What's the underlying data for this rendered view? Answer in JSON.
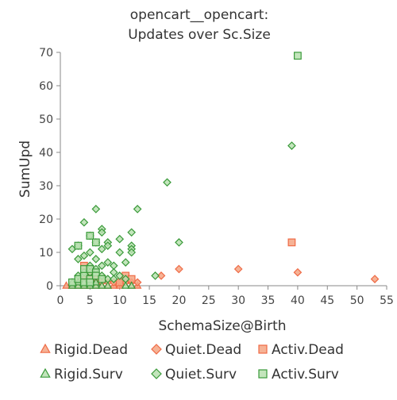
{
  "chart_data": {
    "type": "scatter",
    "title": [
      "opencart__opencart:",
      "Updates over Sc.Size"
    ],
    "xlabel": "SchemaSize@Birth",
    "ylabel": "SumUpd",
    "xlim": [
      0,
      55
    ],
    "ylim": [
      0,
      70
    ],
    "xticks": [
      "0",
      "5",
      "10",
      "15",
      "20",
      "25",
      "30",
      "35",
      "40",
      "45",
      "50",
      "55"
    ],
    "yticks": [
      "0",
      "10",
      "20",
      "30",
      "40",
      "50",
      "60",
      "70"
    ],
    "grid": false,
    "legend_position": "bottom",
    "series": [
      {
        "name": "Rigid.Dead",
        "marker": "triangle",
        "color": "#f4a582",
        "stroke": "#ef6a45",
        "points": [
          [
            1,
            0
          ],
          [
            2,
            0
          ],
          [
            3,
            0
          ],
          [
            4,
            0
          ],
          [
            4,
            1
          ],
          [
            5,
            0
          ],
          [
            5,
            1
          ],
          [
            6,
            0
          ],
          [
            6,
            1
          ],
          [
            7,
            0
          ],
          [
            8,
            0
          ],
          [
            9,
            0
          ],
          [
            10,
            0
          ],
          [
            12,
            0
          ],
          [
            13,
            0
          ]
        ]
      },
      {
        "name": "Quiet.Dead",
        "marker": "diamond",
        "color": "#f4a582",
        "stroke": "#ef6a45",
        "points": [
          [
            3,
            1
          ],
          [
            4,
            1
          ],
          [
            4,
            2
          ],
          [
            5,
            1
          ],
          [
            5,
            3
          ],
          [
            6,
            1
          ],
          [
            6,
            2
          ],
          [
            7,
            1
          ],
          [
            8,
            1
          ],
          [
            9,
            1
          ],
          [
            10,
            1
          ],
          [
            11,
            2
          ],
          [
            11,
            1
          ],
          [
            12,
            1
          ],
          [
            13,
            1
          ],
          [
            17,
            3
          ],
          [
            20,
            5
          ],
          [
            30,
            5
          ],
          [
            40,
            4
          ],
          [
            53,
            2
          ]
        ]
      },
      {
        "name": "Activ.Dead",
        "marker": "square",
        "color": "#f4a582",
        "stroke": "#ef6a45",
        "points": [
          [
            4,
            6
          ],
          [
            4,
            1
          ],
          [
            5,
            2
          ],
          [
            7,
            2
          ],
          [
            10,
            1
          ],
          [
            11,
            3
          ],
          [
            12,
            2
          ],
          [
            39,
            13
          ]
        ]
      },
      {
        "name": "Rigid.Surv",
        "marker": "triangle",
        "color": "#b8e0b0",
        "stroke": "#3a9a3a",
        "points": [
          [
            2,
            0
          ],
          [
            2,
            1
          ],
          [
            3,
            0
          ],
          [
            3,
            1
          ],
          [
            4,
            0
          ],
          [
            4,
            1
          ],
          [
            5,
            0
          ],
          [
            5,
            1
          ],
          [
            6,
            0
          ],
          [
            6,
            1
          ],
          [
            7,
            0
          ],
          [
            8,
            0
          ],
          [
            11,
            0
          ],
          [
            12,
            0
          ]
        ]
      },
      {
        "name": "Quiet.Surv",
        "marker": "diamond",
        "color": "#b8e0b0",
        "stroke": "#3a9a3a",
        "points": [
          [
            2,
            11
          ],
          [
            3,
            8
          ],
          [
            3,
            12
          ],
          [
            4,
            19
          ],
          [
            4,
            9
          ],
          [
            5,
            15
          ],
          [
            5,
            10
          ],
          [
            5,
            6
          ],
          [
            6,
            23
          ],
          [
            6,
            13
          ],
          [
            6,
            8
          ],
          [
            7,
            17
          ],
          [
            7,
            16
          ],
          [
            7,
            11
          ],
          [
            7,
            6
          ],
          [
            8,
            13
          ],
          [
            8,
            12
          ],
          [
            8,
            7
          ],
          [
            9,
            6
          ],
          [
            9,
            4
          ],
          [
            10,
            14
          ],
          [
            10,
            10
          ],
          [
            11,
            7
          ],
          [
            12,
            16
          ],
          [
            12,
            12
          ],
          [
            12,
            11
          ],
          [
            12,
            10
          ],
          [
            13,
            23
          ],
          [
            16,
            3
          ],
          [
            18,
            31
          ],
          [
            20,
            13
          ],
          [
            39,
            42
          ],
          [
            3,
            3
          ],
          [
            4,
            4
          ],
          [
            5,
            4
          ],
          [
            6,
            5
          ],
          [
            7,
            3
          ],
          [
            8,
            2
          ],
          [
            9,
            2
          ],
          [
            10,
            3
          ],
          [
            11,
            2
          ]
        ]
      },
      {
        "name": "Activ.Surv",
        "marker": "square",
        "color": "#b8e0b0",
        "stroke": "#3a9a3a",
        "points": [
          [
            2,
            1
          ],
          [
            3,
            2
          ],
          [
            3,
            12
          ],
          [
            4,
            3
          ],
          [
            4,
            5
          ],
          [
            4,
            1
          ],
          [
            5,
            15
          ],
          [
            5,
            5
          ],
          [
            5,
            2
          ],
          [
            5,
            1
          ],
          [
            6,
            4
          ],
          [
            6,
            13
          ],
          [
            6,
            3
          ],
          [
            7,
            2
          ],
          [
            40,
            69
          ]
        ]
      }
    ]
  }
}
